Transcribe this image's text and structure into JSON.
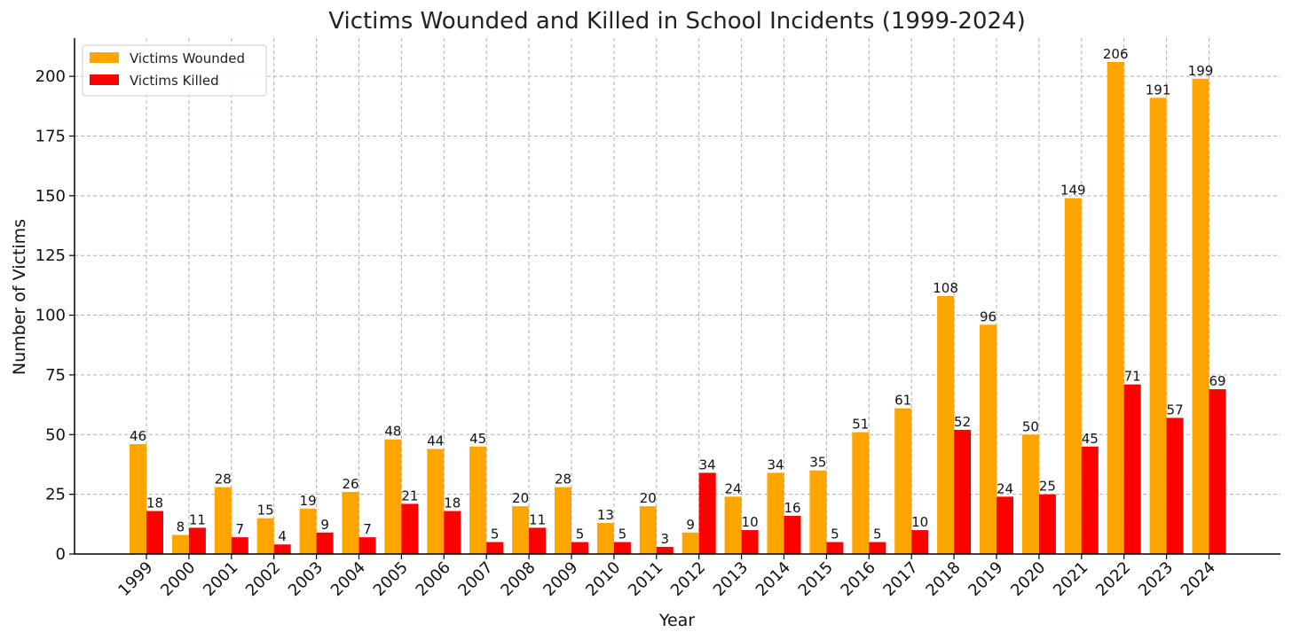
{
  "chart_data": {
    "type": "bar",
    "title": "Victims Wounded and Killed in School Incidents (1999-2024)",
    "xlabel": "Year",
    "ylabel": "Number of Victims",
    "categories": [
      "1999",
      "2000",
      "2001",
      "2002",
      "2003",
      "2004",
      "2005",
      "2006",
      "2007",
      "2008",
      "2009",
      "2010",
      "2011",
      "2012",
      "2013",
      "2014",
      "2015",
      "2016",
      "2017",
      "2018",
      "2019",
      "2020",
      "2021",
      "2022",
      "2023",
      "2024"
    ],
    "series": [
      {
        "name": "Victims Wounded",
        "color": "#FFA500",
        "values": [
          46,
          8,
          28,
          15,
          19,
          26,
          48,
          44,
          45,
          20,
          28,
          13,
          20,
          9,
          24,
          34,
          35,
          51,
          61,
          108,
          96,
          50,
          149,
          206,
          191,
          199
        ]
      },
      {
        "name": "Victims Killed",
        "color": "#FF0000",
        "values": [
          18,
          11,
          7,
          4,
          9,
          7,
          21,
          18,
          5,
          11,
          5,
          5,
          3,
          34,
          10,
          16,
          5,
          5,
          10,
          52,
          24,
          25,
          45,
          71,
          57,
          69
        ]
      }
    ],
    "ylim": [
      0,
      216
    ],
    "yticks": [
      0,
      25,
      50,
      75,
      100,
      125,
      150,
      175,
      200
    ],
    "grid": true,
    "legend": "top-left"
  }
}
